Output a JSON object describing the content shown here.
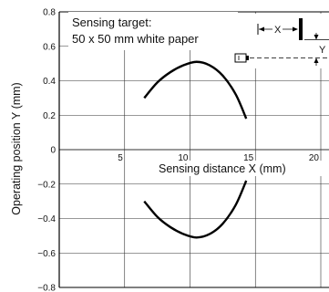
{
  "chart_data": {
    "type": "line",
    "title": "",
    "xlabel": "Sensing distance X (mm)",
    "ylabel": "Operating position Y (mm)",
    "xlim": [
      0,
      20
    ],
    "ylim": [
      -0.8,
      0.8
    ],
    "xticks": [
      5,
      10,
      15,
      20
    ],
    "xtick_labels": [
      "5",
      "10",
      "15",
      "20"
    ],
    "yticks": [
      0.8,
      0.6,
      0.4,
      0.2,
      0,
      -0.2,
      -0.4,
      -0.6,
      -0.8
    ],
    "ytick_labels": [
      "0.8",
      "0.6",
      "0.4",
      "0.2",
      "0",
      "−0.2",
      "−0.4",
      "−0.6",
      "−0.8"
    ],
    "grid": true,
    "annotation": {
      "line1": "Sensing target:",
      "line2": "50 x 50 mm white paper"
    },
    "diagram_labels": {
      "x": "X",
      "y": "Y"
    },
    "series": [
      {
        "x": [
          6.5,
          7.5,
          8.5,
          9.5,
          10.5,
          11.5,
          12.5,
          13.5,
          14.3
        ],
        "y": [
          0.3,
          0.39,
          0.45,
          0.49,
          0.51,
          0.49,
          0.43,
          0.32,
          0.18
        ]
      },
      {
        "x": [
          6.5,
          7.5,
          8.5,
          9.5,
          10.5,
          11.5,
          12.5,
          13.5,
          14.3
        ],
        "y": [
          -0.3,
          -0.39,
          -0.45,
          -0.49,
          -0.51,
          -0.49,
          -0.43,
          -0.32,
          -0.18
        ]
      }
    ],
    "line_color": "#000000",
    "grid_color": "#333333"
  }
}
